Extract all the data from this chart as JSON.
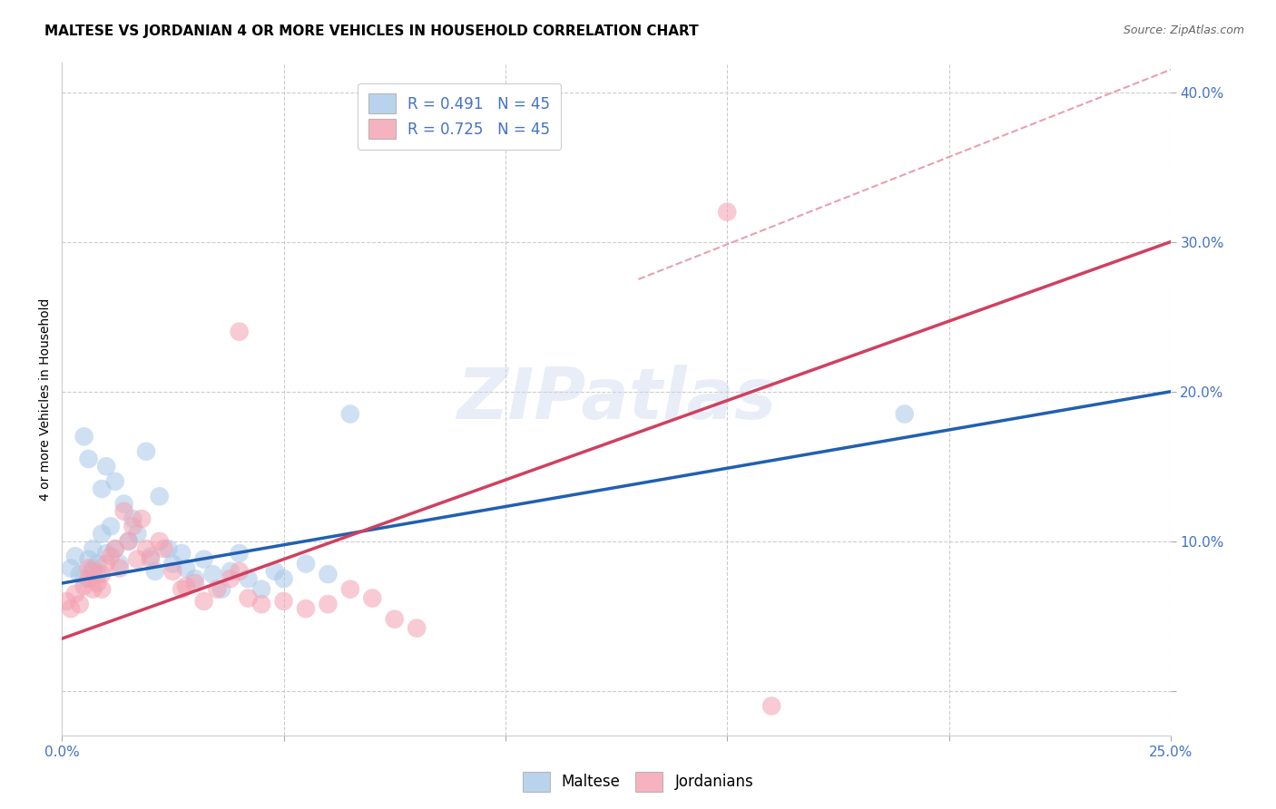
{
  "title": "MALTESE VS JORDANIAN 4 OR MORE VEHICLES IN HOUSEHOLD CORRELATION CHART",
  "source": "Source: ZipAtlas.com",
  "ylabel_label": "4 or more Vehicles in Household",
  "xlim": [
    0.0,
    0.25
  ],
  "ylim": [
    -0.03,
    0.42
  ],
  "xtick_positions": [
    0.0,
    0.05,
    0.1,
    0.15,
    0.2,
    0.25
  ],
  "xticklabels": [
    "0.0%",
    "",
    "",
    "",
    "",
    "25.0%"
  ],
  "ytick_positions": [
    0.0,
    0.1,
    0.2,
    0.3,
    0.4
  ],
  "yticklabels": [
    "",
    "10.0%",
    "20.0%",
    "30.0%",
    "40.0%"
  ],
  "watermark": "ZIPatlas",
  "maltese_color": "#a8c8e8",
  "jordanian_color": "#f4a0b0",
  "maltese_line_color": "#2060b0",
  "jordanian_line_color": "#d04060",
  "dashed_line_color": "#e8a0b0",
  "background_color": "#ffffff",
  "grid_color": "#cccccc",
  "tick_color": "#4472c4",
  "title_fontsize": 11,
  "axis_label_fontsize": 10,
  "tick_fontsize": 11,
  "legend_fontsize": 12,
  "blue_line_x0": 0.0,
  "blue_line_y0": 0.072,
  "blue_line_x1": 0.25,
  "blue_line_y1": 0.2,
  "pink_line_x0": 0.0,
  "pink_line_y0": 0.035,
  "pink_line_x1": 0.25,
  "pink_line_y1": 0.3,
  "dash_line_x0": 0.13,
  "dash_line_y0": 0.275,
  "dash_line_x1": 0.25,
  "dash_line_y1": 0.415,
  "maltese_x": [
    0.002,
    0.003,
    0.004,
    0.005,
    0.005,
    0.006,
    0.006,
    0.007,
    0.007,
    0.008,
    0.008,
    0.009,
    0.009,
    0.01,
    0.01,
    0.011,
    0.012,
    0.012,
    0.013,
    0.014,
    0.015,
    0.016,
    0.017,
    0.019,
    0.02,
    0.021,
    0.022,
    0.024,
    0.025,
    0.027,
    0.028,
    0.03,
    0.032,
    0.034,
    0.036,
    0.038,
    0.04,
    0.042,
    0.045,
    0.048,
    0.05,
    0.055,
    0.06,
    0.065,
    0.19
  ],
  "maltese_y": [
    0.082,
    0.09,
    0.078,
    0.075,
    0.17,
    0.088,
    0.155,
    0.082,
    0.095,
    0.078,
    0.085,
    0.135,
    0.105,
    0.092,
    0.15,
    0.11,
    0.095,
    0.14,
    0.085,
    0.125,
    0.1,
    0.115,
    0.105,
    0.16,
    0.09,
    0.08,
    0.13,
    0.095,
    0.085,
    0.092,
    0.082,
    0.075,
    0.088,
    0.078,
    0.068,
    0.08,
    0.092,
    0.075,
    0.068,
    0.08,
    0.075,
    0.085,
    0.078,
    0.185,
    0.185
  ],
  "jordanian_x": [
    0.001,
    0.002,
    0.003,
    0.004,
    0.005,
    0.006,
    0.006,
    0.007,
    0.007,
    0.008,
    0.009,
    0.009,
    0.01,
    0.011,
    0.012,
    0.013,
    0.014,
    0.015,
    0.016,
    0.017,
    0.018,
    0.019,
    0.02,
    0.022,
    0.023,
    0.025,
    0.027,
    0.028,
    0.03,
    0.032,
    0.035,
    0.038,
    0.04,
    0.042,
    0.045,
    0.05,
    0.055,
    0.06,
    0.065,
    0.07,
    0.075,
    0.08,
    0.15,
    0.16,
    0.04
  ],
  "jordanian_y": [
    0.06,
    0.055,
    0.065,
    0.058,
    0.07,
    0.075,
    0.082,
    0.068,
    0.08,
    0.072,
    0.078,
    0.068,
    0.085,
    0.09,
    0.095,
    0.082,
    0.12,
    0.1,
    0.11,
    0.088,
    0.115,
    0.095,
    0.088,
    0.1,
    0.095,
    0.08,
    0.068,
    0.07,
    0.072,
    0.06,
    0.068,
    0.075,
    0.08,
    0.062,
    0.058,
    0.06,
    0.055,
    0.058,
    0.068,
    0.062,
    0.048,
    0.042,
    0.32,
    -0.01,
    0.24
  ]
}
